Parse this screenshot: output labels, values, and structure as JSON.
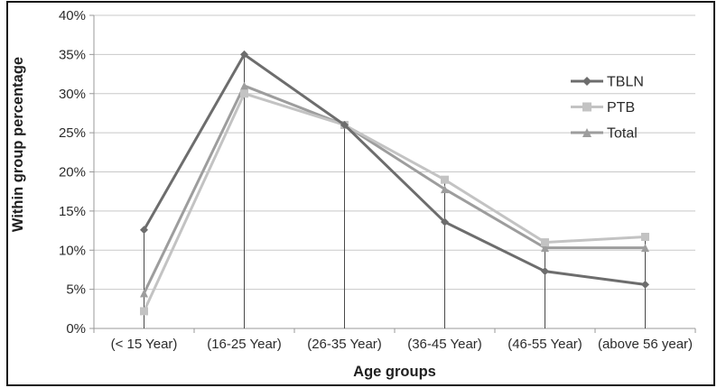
{
  "chart_data": {
    "type": "line",
    "title": "",
    "xlabel": "Age groups",
    "ylabel": "Within group percentage",
    "categories": [
      "(< 15 Year)",
      "(16-25 Year)",
      "(26-35 Year)",
      "(36-45 Year)",
      "(46-55 Year)",
      "(above 56 year)"
    ],
    "series": [
      {
        "name": "TBLN",
        "marker": "diamond",
        "color": "#6d6d6d",
        "values": [
          12.6,
          35,
          26,
          13.6,
          7.3,
          5.6
        ]
      },
      {
        "name": "PTB",
        "marker": "square",
        "color": "#c3c3c3",
        "values": [
          2.2,
          30,
          26,
          19,
          11,
          11.7
        ]
      },
      {
        "name": "Total",
        "marker": "triangle",
        "color": "#9d9d9d",
        "values": [
          4.5,
          31,
          26,
          17.8,
          10.3,
          10.3
        ]
      }
    ],
    "y_axis": {
      "min": 0,
      "max": 40,
      "step": 5,
      "tick_labels": [
        "0%",
        "5%",
        "10%",
        "15%",
        "20%",
        "25%",
        "30%",
        "35%",
        "40%"
      ]
    },
    "legend_position": "right-inside",
    "grid": true,
    "drop_lines": true
  },
  "colors": {
    "grid": "#c8c8c8",
    "axis": "#999999",
    "drop_line": "#4a4a4a",
    "text": "#2b2b2b",
    "border": "#181818",
    "background": "#ffffff"
  }
}
